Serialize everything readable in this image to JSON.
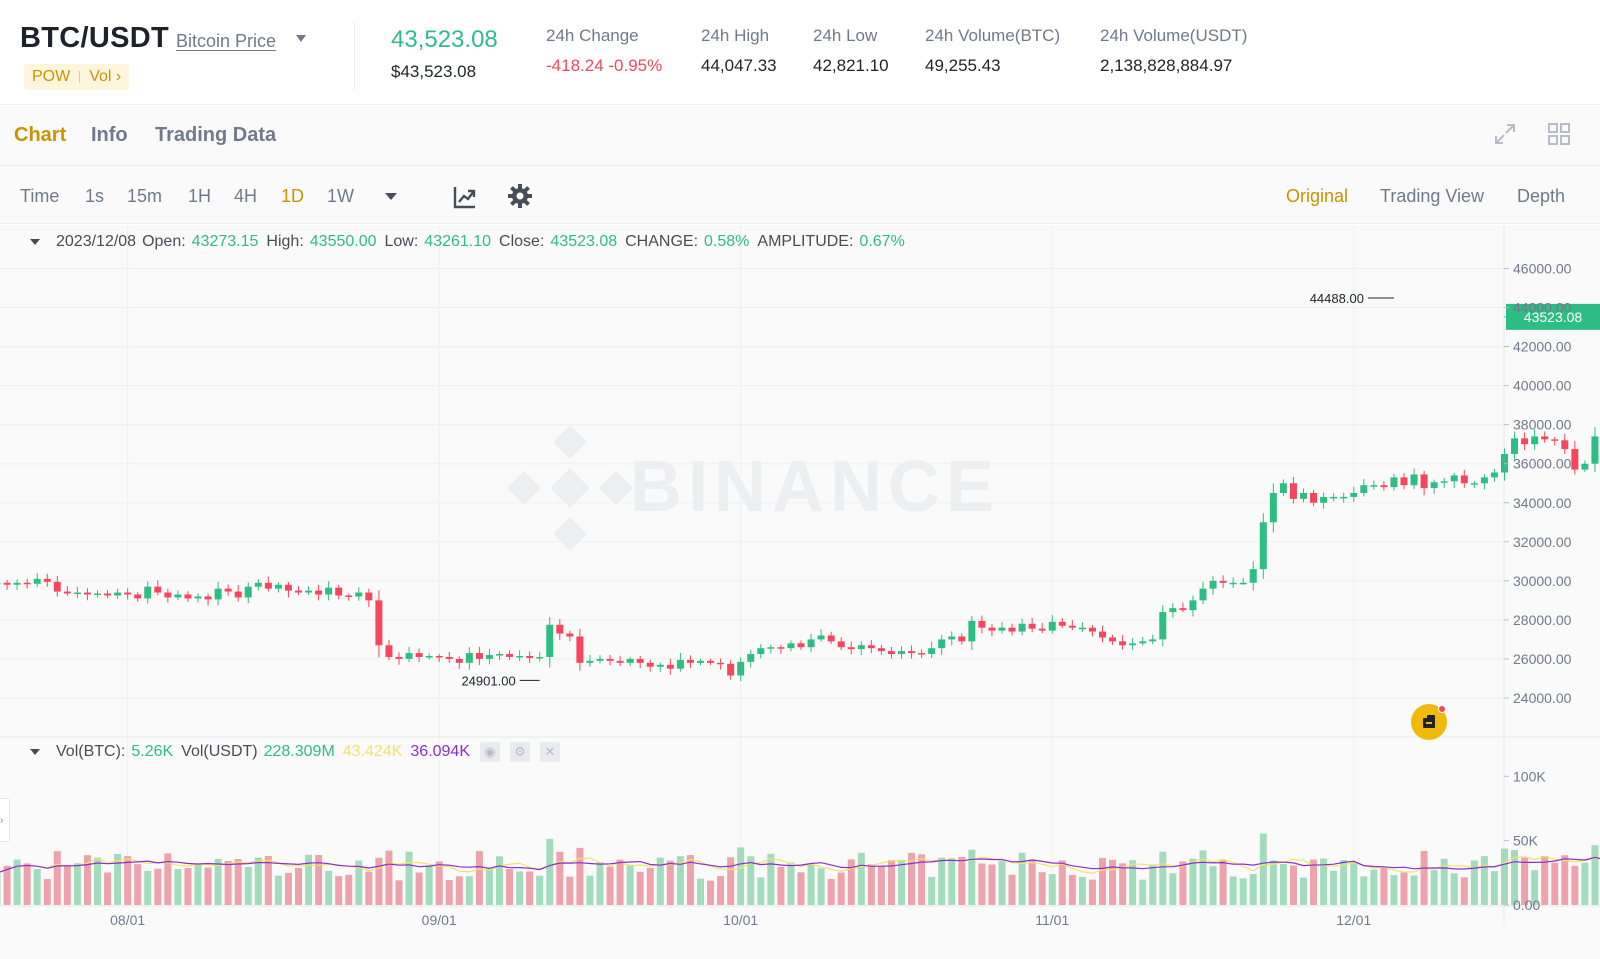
{
  "header": {
    "pair": "BTC/USDT",
    "price_link": "Bitcoin Price",
    "tag_pow": "POW",
    "tag_vol": "Vol ›",
    "last_price": "43,523.08",
    "usd_price": "$43,523.08",
    "stats": [
      {
        "label": "24h Change",
        "value": "-418.24 -0.95%",
        "negative": true
      },
      {
        "label": "24h High",
        "value": "44,047.33",
        "negative": false
      },
      {
        "label": "24h Low",
        "value": "42,821.10",
        "negative": false
      },
      {
        "label": "24h Volume(BTC)",
        "value": "49,255.43",
        "negative": false
      },
      {
        "label": "24h Volume(USDT)",
        "value": "2,138,828,884.97",
        "negative": false
      }
    ]
  },
  "tabs": [
    {
      "label": "Chart",
      "active": true
    },
    {
      "label": "Info",
      "active": false
    },
    {
      "label": "Trading Data",
      "active": false
    }
  ],
  "toolbar": {
    "timeframes": [
      {
        "label": "Time",
        "active": false
      },
      {
        "label": "1s",
        "active": false
      },
      {
        "label": "15m",
        "active": false
      },
      {
        "label": "1H",
        "active": false
      },
      {
        "label": "4H",
        "active": false
      },
      {
        "label": "1D",
        "active": true
      },
      {
        "label": "1W",
        "active": false
      }
    ],
    "views": [
      {
        "label": "Original",
        "active": true
      },
      {
        "label": "Trading View",
        "active": false
      },
      {
        "label": "Depth",
        "active": false
      }
    ]
  },
  "ohlc": {
    "date": "2023/12/08",
    "open_label": "Open:",
    "open": "43273.15",
    "high_label": "High:",
    "high": "43550.00",
    "low_label": "Low:",
    "low": "43261.10",
    "close_label": "Close:",
    "close": "43523.08",
    "change_label": "CHANGE:",
    "change": "0.58%",
    "amplitude_label": "AMPLITUDE:",
    "amplitude": "0.67%"
  },
  "volume_legend": {
    "vol_btc_label": "Vol(BTC):",
    "vol_btc": "5.26K",
    "vol_usdt_label": "Vol(USDT)",
    "vol_usdt": "228.309M",
    "ma1": "43.424K",
    "ma2": "36.094K"
  },
  "watermark": "BINANCE",
  "colors": {
    "up": "#2ebd85",
    "down": "#f6465d",
    "up_vol": "#a3dcbd",
    "down_vol": "#eea3ac",
    "accent": "#c99400",
    "ma_yellow": "#f0e36b",
    "ma_purple": "#8b2fc9"
  },
  "chart_data": {
    "type": "candlestick",
    "x_start": "2023-07-19",
    "x_tick_labels": [
      {
        "date": "2023-08-01",
        "label": "08/01"
      },
      {
        "date": "2023-09-01",
        "label": "09/01"
      },
      {
        "date": "2023-10-01",
        "label": "10/01"
      },
      {
        "date": "2023-11-01",
        "label": "11/01"
      },
      {
        "date": "2023-12-01",
        "label": "12/01"
      }
    ],
    "price_ticks": [
      "24000.00",
      "26000.00",
      "28000.00",
      "30000.00",
      "32000.00",
      "34000.00",
      "36000.00",
      "38000.00",
      "40000.00",
      "42000.00",
      "44000.00",
      "46000.00"
    ],
    "price_range": [
      22000,
      47000
    ],
    "volume_ticks": [
      {
        "value": 0,
        "label": "0.00"
      },
      {
        "value": 50000,
        "label": "50K"
      },
      {
        "value": 100000,
        "label": "100K"
      }
    ],
    "volume_range": [
      0,
      115000
    ],
    "current_price_label": "43523.08",
    "current_price": 43523.08,
    "max_marker": {
      "date": "2023-12-05",
      "value": 44488,
      "label": "44488.00"
    },
    "min_marker": {
      "date": "2023-09-11",
      "value": 24901,
      "label": "24901.00"
    },
    "closes": [
      29900,
      29800,
      29900,
      29850,
      30100,
      29950,
      29450,
      29350,
      29400,
      29300,
      29350,
      29250,
      29400,
      29300,
      29100,
      29700,
      29400,
      29150,
      29300,
      29100,
      29200,
      29050,
      29600,
      29450,
      29150,
      29700,
      29900,
      29600,
      29800,
      29500,
      29400,
      29500,
      29300,
      29650,
      29250,
      29200,
      29400,
      29000,
      26700,
      26100,
      26000,
      26300,
      26100,
      26150,
      26100,
      26000,
      25800,
      26300,
      26000,
      26200,
      26250,
      26100,
      26150,
      26050,
      26100,
      27750,
      27300,
      27150,
      25800,
      25900,
      26000,
      25900,
      25800,
      26000,
      25800,
      25600,
      25700,
      25500,
      25950,
      25800,
      25900,
      25800,
      25750,
      25150,
      25850,
      26250,
      26550,
      26600,
      26550,
      26800,
      26600,
      27000,
      27200,
      26900,
      26600,
      26500,
      26700,
      26550,
      26400,
      26250,
      26400,
      26300,
      26250,
      26550,
      27000,
      27150,
      26900,
      27950,
      27600,
      27450,
      27600,
      27400,
      27800,
      27550,
      27450,
      27900,
      27700,
      27600,
      27600,
      27400,
      27100,
      26900,
      26700,
      26800,
      26900,
      27000,
      28400,
      28600,
      28500,
      29000,
      29600,
      30000,
      29900,
      29900,
      29900,
      30600,
      33000,
      34500,
      35000,
      34200,
      34500,
      34000,
      34300,
      34300,
      34300,
      34500,
      34900,
      34900,
      34800,
      35300,
      34900,
      35450,
      34750,
      35050,
      35100,
      35400,
      35000,
      35000,
      35300,
      35550,
      36500,
      37300,
      37000,
      37400,
      37250,
      37200,
      36750,
      35700,
      36000,
      37400,
      37900,
      36200,
      36500,
      36700,
      37000,
      37500,
      37400,
      37300,
      37550,
      37700,
      37500,
      35850,
      37400,
      37300,
      37550,
      37800,
      37500,
      37700,
      37250,
      37400,
      37700,
      37850,
      37600,
      38700,
      39400,
      39950,
      41950,
      44100,
      43750,
      43300,
      43523
    ]
  }
}
